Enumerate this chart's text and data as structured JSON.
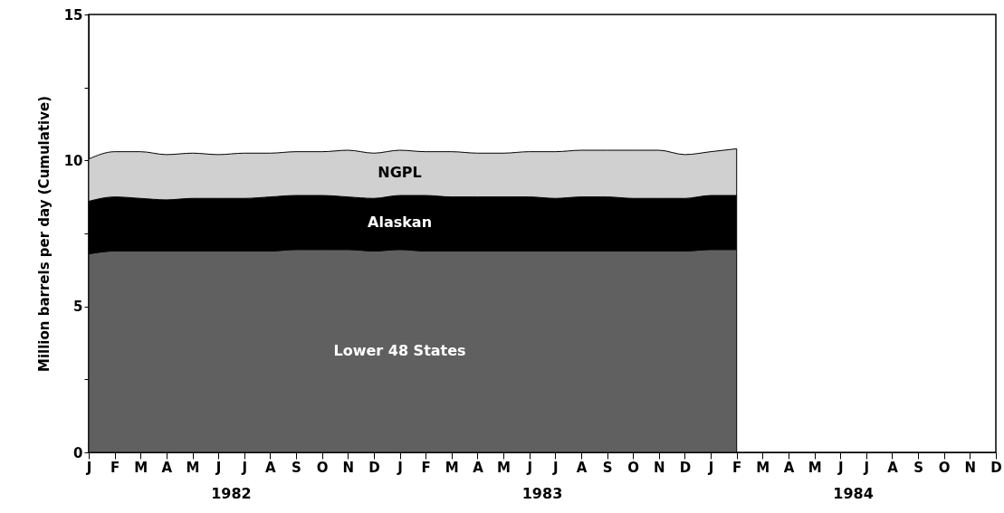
{
  "chart_data": {
    "type": "area",
    "stacked": true,
    "ylabel": "Million barrels per day (Cumulative)",
    "categories": [
      "J",
      "F",
      "M",
      "A",
      "M",
      "J",
      "J",
      "A",
      "S",
      "O",
      "N",
      "D",
      "J",
      "F",
      "M",
      "A",
      "M",
      "J",
      "J",
      "A",
      "S",
      "O",
      "N",
      "D",
      "J",
      "F",
      "M",
      "A",
      "M",
      "J",
      "J",
      "A",
      "S",
      "O",
      "N",
      "D"
    ],
    "annotations": [
      "1982",
      "1983",
      "1984"
    ],
    "ylim": [
      0,
      15
    ],
    "yticks": [
      0,
      {
        "value": 2.5,
        "label": null
      },
      5,
      {
        "value": 7.5,
        "label": null
      },
      10,
      {
        "value": 12.5,
        "label": null
      },
      15
    ],
    "grid": false,
    "series": [
      {
        "name": "Lower 48 States",
        "color": "#606060",
        "values": [
          6.8,
          6.9,
          6.9,
          6.9,
          6.9,
          6.9,
          6.9,
          6.9,
          6.95,
          6.95,
          6.95,
          6.9,
          6.95,
          6.9,
          6.9,
          6.9,
          6.9,
          6.9,
          6.9,
          6.9,
          6.9,
          6.9,
          6.9,
          6.9,
          6.95,
          6.95,
          null,
          null,
          null,
          null,
          null,
          null,
          null,
          null,
          null,
          null
        ]
      },
      {
        "name": "Alaskan",
        "color": "#000000",
        "values": [
          1.8,
          1.85,
          1.8,
          1.75,
          1.8,
          1.8,
          1.8,
          1.85,
          1.85,
          1.85,
          1.8,
          1.8,
          1.85,
          1.9,
          1.85,
          1.85,
          1.85,
          1.85,
          1.8,
          1.85,
          1.85,
          1.8,
          1.8,
          1.8,
          1.85,
          1.85,
          null,
          null,
          null,
          null,
          null,
          null,
          null,
          null,
          null,
          null
        ]
      },
      {
        "name": "NGPL",
        "color": "#d0d0d0",
        "values": [
          1.45,
          1.55,
          1.6,
          1.55,
          1.55,
          1.5,
          1.55,
          1.5,
          1.5,
          1.5,
          1.6,
          1.55,
          1.55,
          1.5,
          1.55,
          1.5,
          1.5,
          1.55,
          1.6,
          1.6,
          1.6,
          1.65,
          1.65,
          1.5,
          1.5,
          1.6,
          null,
          null,
          null,
          null,
          null,
          null,
          null,
          null,
          null,
          null
        ]
      }
    ]
  }
}
